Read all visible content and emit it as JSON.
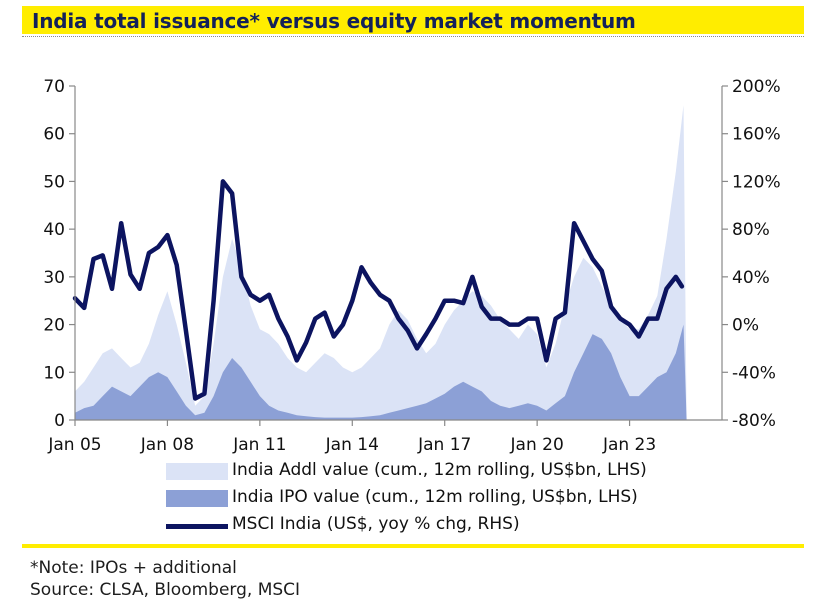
{
  "header": {
    "title": "India total issuance* versus equity market momentum"
  },
  "footer": {
    "note": "*Note: IPOs + additional",
    "source": "Source: CLSA, Bloomberg, MSCI"
  },
  "colors": {
    "accent_yellow": "#ffed00",
    "title_text": "#13215a",
    "addl_fill": "#dbe3f6",
    "ipo_fill": "#8ca0d6",
    "msci_line": "#0c1460"
  },
  "chart_data": {
    "type": "area",
    "title": "India total issuance* versus equity market momentum",
    "x_tick_labels": [
      "Jan 05",
      "Jan 08",
      "Jan 11",
      "Jan 14",
      "Jan 17",
      "Jan 20",
      "Jan 23"
    ],
    "x_tick_years": [
      2005,
      2008,
      2011,
      2014,
      2017,
      2020,
      2023
    ],
    "xlim": [
      2005,
      2026
    ],
    "left_axis": {
      "ylim": [
        0,
        70
      ],
      "ticks": [
        0,
        10,
        20,
        30,
        40,
        50,
        60,
        70
      ],
      "tick_labels": [
        "0",
        "10",
        "20",
        "30",
        "40",
        "50",
        "60",
        "70"
      ]
    },
    "right_axis": {
      "ylim": [
        -80,
        200
      ],
      "ticks": [
        -80,
        -40,
        0,
        40,
        80,
        120,
        160,
        200
      ],
      "tick_labels": [
        "-80%",
        "-40%",
        "0%",
        "40%",
        "80%",
        "120%",
        "160%",
        "200%"
      ]
    },
    "legend": [
      "India Addl value (cum., 12m rolling, US$bn, LHS)",
      "India IPO value (cum., 12m rolling, US$bn, LHS)",
      "MSCI India (US$, yoy % chg, RHS)"
    ],
    "series": [
      {
        "name": "India Addl value (cum., 12m rolling, US$bn, LHS)",
        "axis": "left",
        "kind": "area",
        "x": [
          2005.0,
          2005.3,
          2005.6,
          2005.9,
          2006.2,
          2006.5,
          2006.8,
          2007.1,
          2007.4,
          2007.7,
          2008.0,
          2008.3,
          2008.6,
          2008.9,
          2009.2,
          2009.5,
          2009.8,
          2010.1,
          2010.4,
          2010.7,
          2011.0,
          2011.3,
          2011.6,
          2011.9,
          2012.2,
          2012.5,
          2012.8,
          2013.1,
          2013.4,
          2013.7,
          2014.0,
          2014.3,
          2014.6,
          2014.9,
          2015.2,
          2015.5,
          2015.8,
          2016.1,
          2016.4,
          2016.7,
          2017.0,
          2017.3,
          2017.6,
          2017.9,
          2018.2,
          2018.5,
          2018.8,
          2019.1,
          2019.4,
          2019.7,
          2020.0,
          2020.3,
          2020.6,
          2020.9,
          2021.2,
          2021.5,
          2021.8,
          2022.1,
          2022.4,
          2022.7,
          2023.0,
          2023.3,
          2023.6,
          2023.9,
          2024.2,
          2024.5,
          2024.75,
          2024.85
        ],
        "values": [
          6,
          8,
          11,
          14,
          15,
          13,
          11,
          12,
          16,
          22,
          27,
          20,
          12,
          3,
          5,
          16,
          30,
          38,
          32,
          24,
          19,
          18,
          16,
          13,
          11,
          10,
          12,
          14,
          13,
          11,
          10,
          11,
          13,
          15,
          20,
          23,
          21,
          17,
          14,
          16,
          20,
          23,
          25,
          27,
          26,
          24,
          21,
          19,
          17,
          20,
          18,
          11,
          16,
          24,
          30,
          34,
          32,
          28,
          24,
          21,
          19,
          19,
          22,
          26,
          38,
          52,
          66,
          0
        ]
      },
      {
        "name": "India IPO value (cum., 12m rolling, US$bn, LHS)",
        "axis": "left",
        "kind": "area",
        "x": [
          2005.0,
          2005.3,
          2005.6,
          2005.9,
          2006.2,
          2006.5,
          2006.8,
          2007.1,
          2007.4,
          2007.7,
          2008.0,
          2008.3,
          2008.6,
          2008.9,
          2009.2,
          2009.5,
          2009.8,
          2010.1,
          2010.4,
          2010.7,
          2011.0,
          2011.3,
          2011.6,
          2011.9,
          2012.2,
          2012.5,
          2012.8,
          2013.1,
          2013.4,
          2013.7,
          2014.0,
          2014.3,
          2014.6,
          2014.9,
          2015.2,
          2015.5,
          2015.8,
          2016.1,
          2016.4,
          2016.7,
          2017.0,
          2017.3,
          2017.6,
          2017.9,
          2018.2,
          2018.5,
          2018.8,
          2019.1,
          2019.4,
          2019.7,
          2020.0,
          2020.3,
          2020.6,
          2020.9,
          2021.2,
          2021.5,
          2021.8,
          2022.1,
          2022.4,
          2022.7,
          2023.0,
          2023.3,
          2023.6,
          2023.9,
          2024.2,
          2024.5,
          2024.75,
          2024.85
        ],
        "values": [
          1.5,
          2.5,
          3,
          5,
          7,
          6,
          5,
          7,
          9,
          10,
          9,
          6,
          3,
          1,
          1.5,
          5,
          10,
          13,
          11,
          8,
          5,
          3,
          2,
          1.5,
          1,
          0.8,
          0.6,
          0.5,
          0.5,
          0.5,
          0.5,
          0.6,
          0.8,
          1,
          1.5,
          2,
          2.5,
          3,
          3.5,
          4.5,
          5.5,
          7,
          8,
          7,
          6,
          4,
          3,
          2.5,
          3,
          3.5,
          3,
          2,
          3.5,
          5,
          10,
          14,
          18,
          17,
          14,
          9,
          5,
          5,
          7,
          9,
          10,
          14,
          20,
          0
        ]
      },
      {
        "name": "MSCI India (US$, yoy % chg, RHS)",
        "axis": "right",
        "kind": "line",
        "x": [
          2005.0,
          2005.3,
          2005.6,
          2005.9,
          2006.2,
          2006.5,
          2006.8,
          2007.1,
          2007.4,
          2007.7,
          2008.0,
          2008.3,
          2008.6,
          2008.9,
          2009.2,
          2009.5,
          2009.8,
          2010.1,
          2010.4,
          2010.7,
          2011.0,
          2011.3,
          2011.6,
          2011.9,
          2012.2,
          2012.5,
          2012.8,
          2013.1,
          2013.4,
          2013.7,
          2014.0,
          2014.3,
          2014.6,
          2014.9,
          2015.2,
          2015.5,
          2015.8,
          2016.1,
          2016.4,
          2016.7,
          2017.0,
          2017.3,
          2017.6,
          2017.9,
          2018.2,
          2018.5,
          2018.8,
          2019.1,
          2019.4,
          2019.7,
          2020.0,
          2020.3,
          2020.6,
          2020.9,
          2021.2,
          2021.5,
          2021.8,
          2022.1,
          2022.4,
          2022.7,
          2023.0,
          2023.3,
          2023.6,
          2023.9,
          2024.2,
          2024.5,
          2024.7
        ],
        "values": [
          22,
          14,
          55,
          58,
          30,
          85,
          42,
          30,
          60,
          65,
          75,
          50,
          -5,
          -62,
          -58,
          20,
          120,
          110,
          40,
          25,
          20,
          25,
          5,
          -10,
          -30,
          -15,
          5,
          10,
          -10,
          0,
          20,
          48,
          35,
          25,
          20,
          5,
          -5,
          -20,
          -8,
          5,
          20,
          20,
          18,
          40,
          15,
          5,
          5,
          0,
          0,
          5,
          5,
          -30,
          5,
          10,
          85,
          70,
          55,
          45,
          15,
          5,
          0,
          -10,
          5,
          5,
          30,
          40,
          32
        ]
      }
    ]
  }
}
